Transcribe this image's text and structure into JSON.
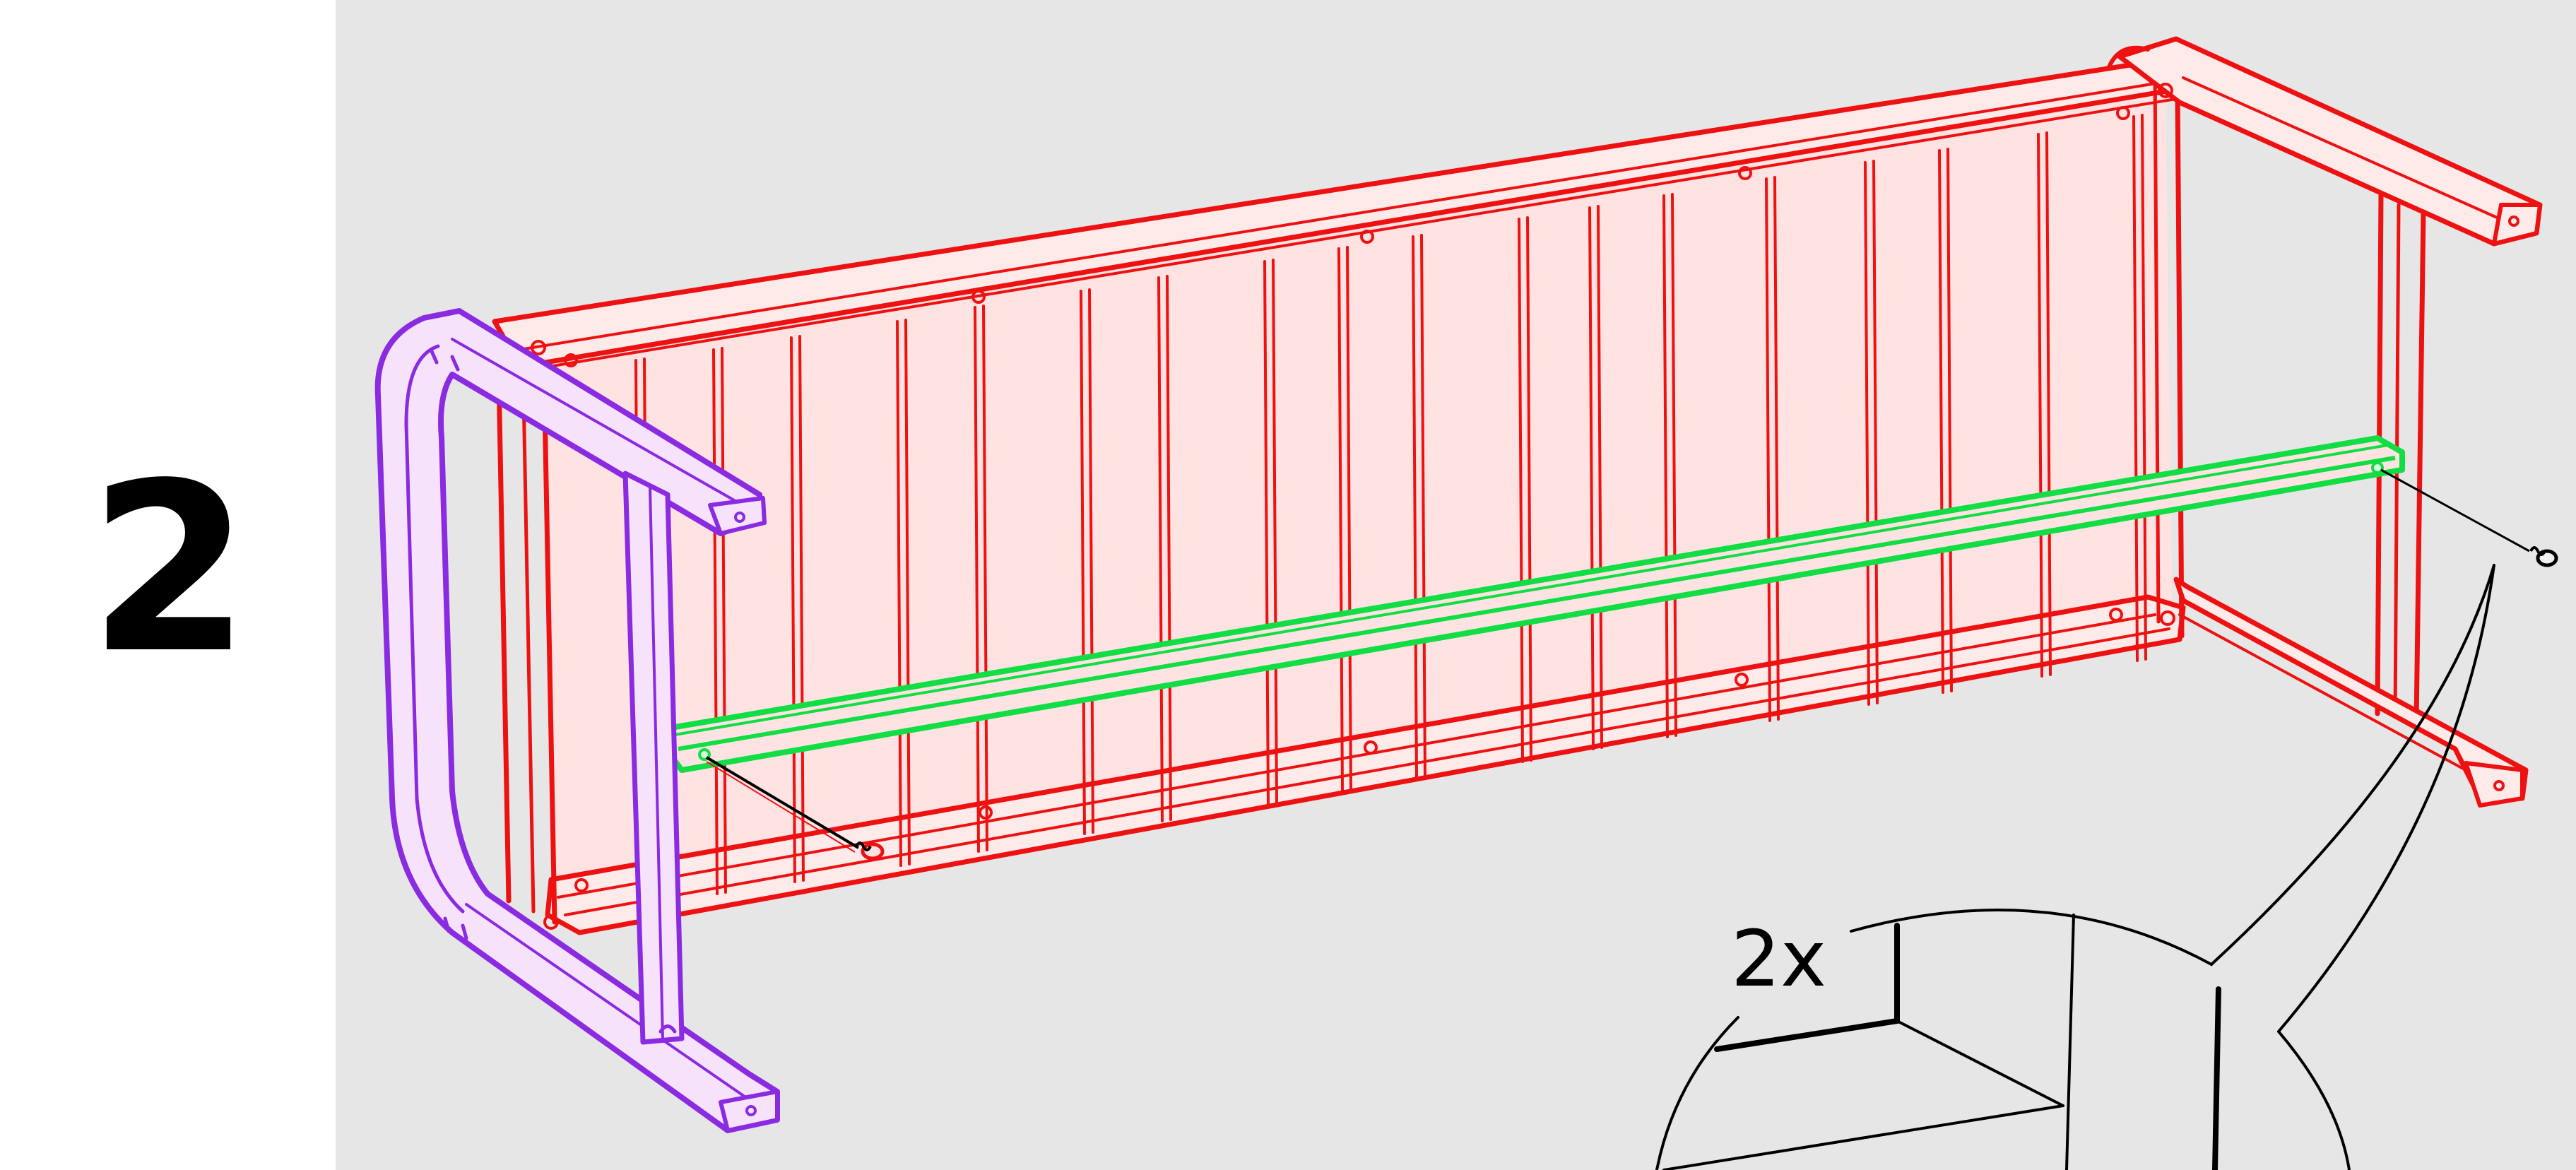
{
  "step": {
    "number": "2"
  },
  "callout": {
    "quantity": "2x"
  },
  "colors": {
    "background": "#e6e6e6",
    "frame_stroke": "#ee1111",
    "frame_fill": "#ffe2e2",
    "leg_stroke": "#8a2be2",
    "leg_fill": "#f6e2fb",
    "rail_stroke": "#11dd44",
    "line": "#000000"
  },
  "parts": {
    "frame": "bench-frame",
    "leg": "end-leg",
    "rail": "support-rail",
    "screws": [
      "screw",
      "screw"
    ]
  }
}
